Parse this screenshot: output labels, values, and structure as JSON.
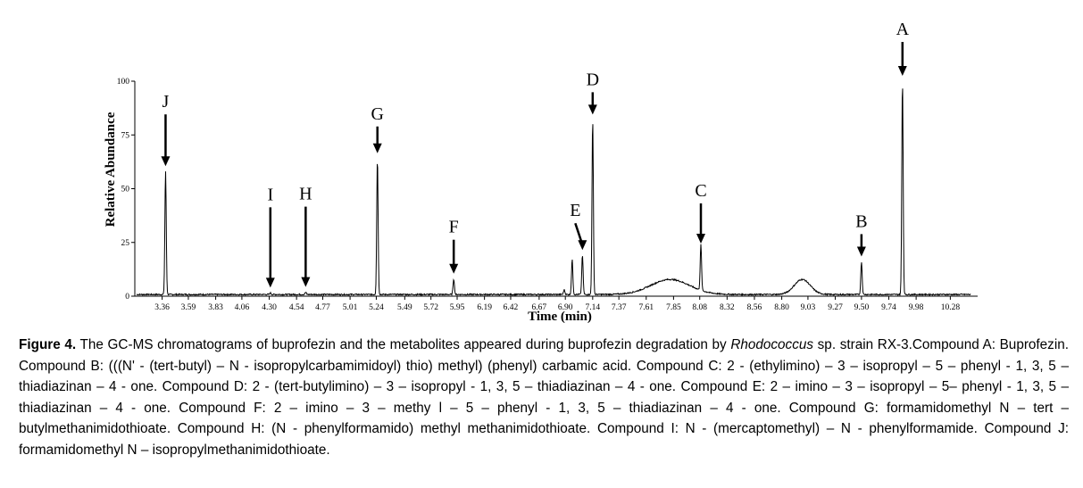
{
  "chart_data": {
    "type": "line",
    "xlabel": "Time (min)",
    "ylabel": "Relative Abundance",
    "ylim": [
      0,
      100
    ],
    "xlim": [
      3.12,
      10.52
    ],
    "x_ticks": [
      "3.36",
      "3.59",
      "3.83",
      "4.06",
      "4.30",
      "4.54",
      "4.77",
      "5.01",
      "5.24",
      "5.49",
      "5.72",
      "5.95",
      "6.19",
      "6.42",
      "6.67",
      "6.90",
      "7.14",
      "7.37",
      "7.61",
      "7.85",
      "8.08",
      "8.32",
      "8.56",
      "8.80",
      "9.03",
      "9.27",
      "9.50",
      "9.74",
      "9.98",
      "10.28"
    ],
    "y_ticks": [
      "0",
      "25",
      "50",
      "75",
      "100"
    ],
    "grid": false,
    "peaks": [
      {
        "label": "J",
        "x": 3.39,
        "y": 58
      },
      {
        "label": "I",
        "x": 4.31,
        "y": 1.5
      },
      {
        "label": "H",
        "x": 4.62,
        "y": 1.8
      },
      {
        "label": "G",
        "x": 5.25,
        "y": 64
      },
      {
        "label": "F",
        "x": 5.92,
        "y": 8
      },
      {
        "label": "E",
        "x": 7.05,
        "y": 19
      },
      {
        "label": "D",
        "x": 7.14,
        "y": 82
      },
      {
        "label": "C",
        "x": 8.09,
        "y": 22
      },
      {
        "label": "B",
        "x": 9.5,
        "y": 16
      },
      {
        "label": "A",
        "x": 9.86,
        "y": 100
      }
    ],
    "minor_peaks": [
      {
        "x": 6.96,
        "y": 17
      },
      {
        "x": 6.89,
        "y": 3
      }
    ],
    "humps": [
      {
        "x": 7.82,
        "y": 7,
        "w": 0.17
      },
      {
        "x": 8.98,
        "y": 7,
        "w": 0.07
      }
    ],
    "baseline": 0.8
  },
  "caption": {
    "figure_label": "Figure 4.",
    "text_before_italic": " The GC-MS chromatograms of buprofezin and the metabolites appeared during buprofezin degradation by ",
    "italic": "Rhodococcus",
    "text_after_italic": " sp. strain RX-3.Compound A: Buprofezin. Compound B: (((N' - (tert-butyl) – N - isopropylcarbamimidoyl) thio) methyl) (phenyl) carbamic acid. Compound C: 2 - (ethylimino) – 3 – isopropyl – 5 – phenyl - 1, 3, 5 – thiadiazinan – 4 - one. Compound D: 2 - (tert-butylimino) – 3 – isopropyl - 1, 3, 5 – thiadiazinan – 4 - one. Compound E: 2 – imino – 3 – isopropyl – 5– phenyl - 1, 3, 5 – thiadiazinan – 4 - one. Compound F: 2 – imino – 3 – methy l – 5 – phenyl - 1, 3, 5 – thiadiazinan – 4 - one. Compound G: formamidomethyl N – tert – butylmethanimidothioate. Compound H: (N - phenylformamido) methyl methanimidothioate. Compound I: N - (mercaptomethyl) – N - phenylformamide. Compound J: formamidomethyl N – isopropylmethanimidothioate."
  }
}
